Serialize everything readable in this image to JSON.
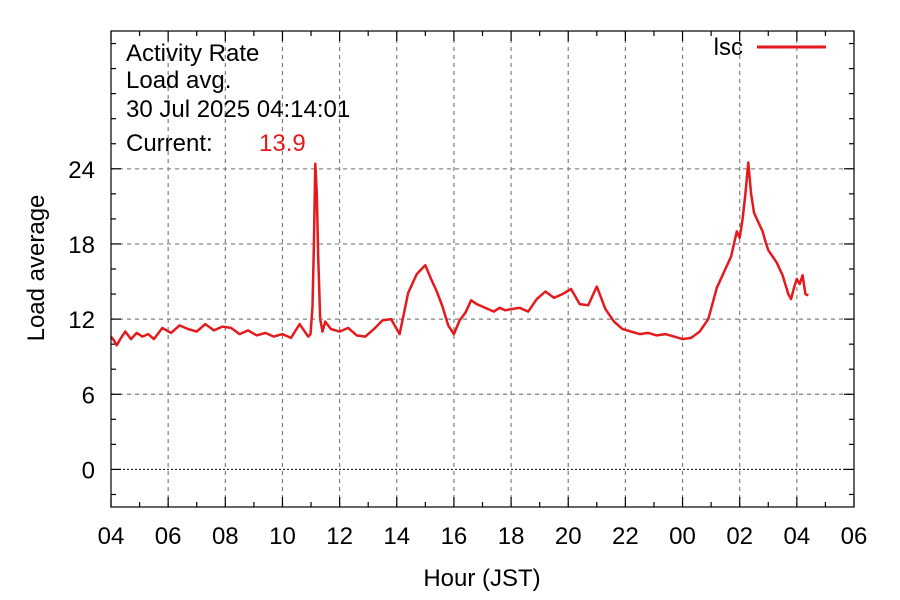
{
  "chart_data": {
    "type": "line",
    "title_lines": [
      "Activity Rate",
      "Load avg.",
      "30 Jul 2025 04:14:01"
    ],
    "current_label": "Current:",
    "current_value": "13.9",
    "xlabel": "Hour (JST)",
    "ylabel": "Load average",
    "x_ticks": [
      "04",
      "06",
      "08",
      "10",
      "12",
      "14",
      "16",
      "18",
      "20",
      "22",
      "00",
      "02",
      "04",
      "06"
    ],
    "xlim_hours": [
      0,
      26
    ],
    "ylim": [
      -3,
      35
    ],
    "y_ticks": [
      0,
      6,
      12,
      18,
      24
    ],
    "grid": true,
    "legend_position": "top-right",
    "series": [
      {
        "name": "lsc",
        "color": "#e41a1c",
        "x": [
          0.0,
          0.1,
          0.2,
          0.35,
          0.5,
          0.7,
          0.9,
          1.1,
          1.3,
          1.5,
          1.8,
          2.1,
          2.4,
          2.7,
          3.0,
          3.3,
          3.6,
          3.9,
          4.2,
          4.5,
          4.8,
          5.1,
          5.4,
          5.7,
          6.0,
          6.3,
          6.6,
          6.9,
          6.98,
          7.05,
          7.1,
          7.15,
          7.2,
          7.25,
          7.32,
          7.4,
          7.5,
          7.7,
          8.0,
          8.3,
          8.6,
          8.9,
          9.2,
          9.5,
          9.8,
          10.1,
          10.4,
          10.7,
          11.0,
          11.2,
          11.4,
          11.6,
          11.8,
          12.0,
          12.2,
          12.4,
          12.6,
          12.8,
          13.0,
          13.2,
          13.4,
          13.6,
          13.8,
          14.0,
          14.3,
          14.6,
          14.9,
          15.2,
          15.5,
          15.8,
          16.1,
          16.4,
          16.7,
          17.0,
          17.3,
          17.6,
          17.9,
          18.2,
          18.5,
          18.8,
          19.1,
          19.4,
          19.7,
          20.0,
          20.3,
          20.6,
          20.9,
          21.2,
          21.5,
          21.7,
          21.9,
          22.0,
          22.1,
          22.2,
          22.3,
          22.4,
          22.5,
          22.6,
          22.7,
          22.8,
          22.9,
          23.0,
          23.15,
          23.3,
          23.5,
          23.7,
          23.8,
          23.9,
          24.0,
          24.1,
          24.2,
          24.3,
          24.4
        ],
        "y": [
          10.6,
          10.3,
          9.9,
          10.5,
          11.0,
          10.4,
          10.9,
          10.6,
          10.8,
          10.4,
          11.3,
          10.9,
          11.5,
          11.2,
          11.0,
          11.6,
          11.1,
          11.4,
          11.3,
          10.8,
          11.1,
          10.7,
          10.9,
          10.6,
          10.8,
          10.5,
          11.6,
          10.6,
          10.8,
          13.0,
          18.0,
          24.4,
          22.0,
          17.0,
          12.0,
          11.0,
          11.8,
          11.2,
          11.0,
          11.3,
          10.7,
          10.6,
          11.2,
          11.9,
          12.0,
          10.8,
          14.1,
          15.6,
          16.3,
          15.2,
          14.2,
          13.0,
          11.5,
          10.8,
          11.9,
          12.5,
          13.5,
          13.2,
          13.0,
          12.8,
          12.6,
          12.9,
          12.7,
          12.8,
          12.9,
          12.6,
          13.6,
          14.2,
          13.7,
          14.0,
          14.4,
          13.2,
          13.1,
          14.6,
          12.8,
          11.8,
          11.2,
          11.0,
          10.8,
          10.9,
          10.7,
          10.8,
          10.6,
          10.4,
          10.5,
          11.0,
          12.0,
          14.5,
          16.0,
          17.0,
          19.0,
          18.5,
          20.0,
          22.0,
          24.5,
          22.0,
          20.5,
          20.0,
          19.5,
          19.0,
          18.2,
          17.5,
          17.0,
          16.5,
          15.5,
          14.0,
          13.6,
          14.5,
          15.2,
          14.8,
          15.5,
          14.0,
          13.9
        ]
      }
    ]
  }
}
